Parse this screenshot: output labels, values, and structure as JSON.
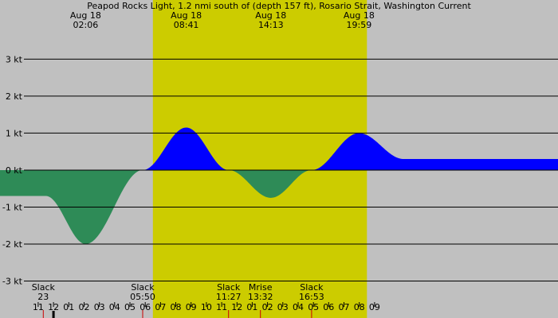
{
  "chart_data": {
    "type": "area",
    "title": "Peapod Rocks Light, 1.2 nmi south of (depth 157 ft), Rosario Strait, Washington Current",
    "xlim": [
      -3.5,
      33.0
    ],
    "ylim": [
      -4.0,
      4.6
    ],
    "yticks": [
      {
        "value": 3,
        "label": "3 kt"
      },
      {
        "value": 2,
        "label": "2 kt"
      },
      {
        "value": 1,
        "label": "1 kt"
      },
      {
        "value": 0,
        "label": "0 kt"
      },
      {
        "value": -1,
        "label": "-1 kt"
      },
      {
        "value": -2,
        "label": "-2 kt"
      },
      {
        "value": -3,
        "label": "-3 kt"
      }
    ],
    "daylight": [
      6.5,
      20.5
    ],
    "series": [
      {
        "x": [
          -0.5,
          2.1,
          5.833,
          8.683,
          11.45,
          14.217,
          16.883,
          19.983,
          22.9
        ],
        "y": [
          -0.7,
          -2.0,
          0.0,
          1.15,
          0.0,
          -0.75,
          0.0,
          1.0,
          0.3
        ]
      }
    ],
    "top_events": [
      {
        "date": "Aug 18",
        "time": "02:06",
        "x": 2.1
      },
      {
        "date": "Aug 18",
        "time": "08:41",
        "x": 8.683
      },
      {
        "date": "Aug 18",
        "time": "14:13",
        "x": 14.217
      },
      {
        "date": "Aug 18",
        "time": "19:59",
        "x": 19.983
      }
    ],
    "bottom_events": [
      {
        "name": "Slack",
        "time": "23",
        "x": -0.667
      },
      {
        "name": "Slack",
        "time": "05:50",
        "x": 5.833
      },
      {
        "name": "Slack",
        "time": "11:27",
        "x": 11.45
      },
      {
        "name": "Mrise",
        "time": "13:32",
        "x": 13.533
      },
      {
        "name": "Slack",
        "time": "16:53",
        "x": 16.883
      }
    ],
    "hour_ticks": [
      "11",
      "12",
      "01",
      "02",
      "03",
      "04",
      "05",
      "06",
      "07",
      "08",
      "09",
      "10",
      "11",
      "12",
      "01",
      "02",
      "03",
      "04",
      "05",
      "06",
      "07",
      "08",
      "09"
    ],
    "hour_start": -1,
    "colors": {
      "background": "#c0c0c0",
      "daylight": "#cccc00",
      "flood": "#0000ff",
      "ebb": "#2e8b57",
      "marker": "#cc0000"
    }
  }
}
